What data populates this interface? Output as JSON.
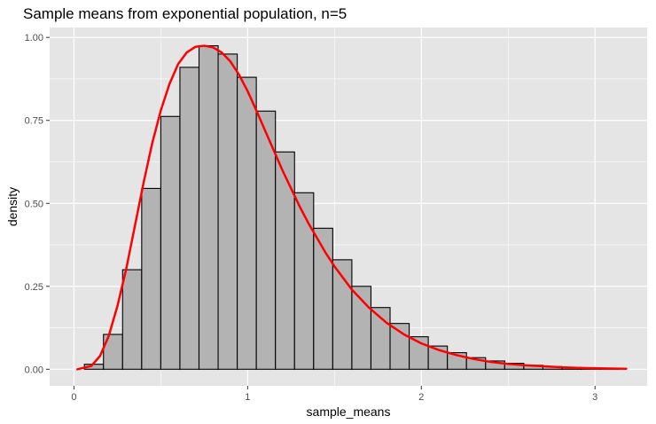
{
  "chart_data": {
    "type": "bar",
    "title": "Sample means from exponential population, n=5",
    "xlabel": "sample_means",
    "ylabel": "density",
    "xlim": [
      -0.14,
      3.3
    ],
    "ylim": [
      -0.05,
      1.03
    ],
    "x_ticks": [
      0,
      1,
      2,
      3
    ],
    "x_tick_labels": [
      "0",
      "1",
      "2",
      "3"
    ],
    "y_ticks": [
      0,
      0.25,
      0.5,
      0.75,
      1.0
    ],
    "y_tick_labels": [
      "0.00",
      "0.25",
      "0.50",
      "0.75",
      "1.00"
    ],
    "grid": true,
    "histogram": {
      "bin_width": 0.11,
      "bin_start": 0.06,
      "densities": [
        0.015,
        0.105,
        0.3,
        0.545,
        0.762,
        0.91,
        0.975,
        0.95,
        0.88,
        0.778,
        0.655,
        0.532,
        0.425,
        0.33,
        0.25,
        0.186,
        0.138,
        0.098,
        0.07,
        0.05,
        0.035,
        0.025,
        0.018,
        0.012,
        0.008,
        0.006,
        0.004,
        0.003
      ]
    },
    "density_curve": {
      "x": [
        0.02,
        0.1,
        0.15,
        0.2,
        0.25,
        0.3,
        0.35,
        0.4,
        0.45,
        0.5,
        0.55,
        0.6,
        0.65,
        0.7,
        0.75,
        0.8,
        0.85,
        0.9,
        0.95,
        1.0,
        1.05,
        1.1,
        1.15,
        1.2,
        1.25,
        1.3,
        1.35,
        1.4,
        1.45,
        1.5,
        1.6,
        1.7,
        1.8,
        1.9,
        2.0,
        2.1,
        2.2,
        2.3,
        2.4,
        2.5,
        2.6,
        2.7,
        2.8,
        2.9,
        3.0,
        3.1,
        3.18
      ],
      "y": [
        0.0,
        0.01,
        0.04,
        0.1,
        0.19,
        0.3,
        0.43,
        0.56,
        0.68,
        0.78,
        0.86,
        0.92,
        0.955,
        0.972,
        0.975,
        0.97,
        0.955,
        0.928,
        0.888,
        0.838,
        0.78,
        0.72,
        0.66,
        0.6,
        0.545,
        0.49,
        0.44,
        0.395,
        0.35,
        0.31,
        0.24,
        0.185,
        0.14,
        0.105,
        0.078,
        0.058,
        0.043,
        0.031,
        0.022,
        0.016,
        0.012,
        0.009,
        0.006,
        0.004,
        0.003,
        0.002,
        0.0015
      ],
      "color": "#ff0000"
    },
    "colors": {
      "panel_background": "#e5e5e5",
      "grid": "#ffffff",
      "bar_fill": "#b3b3b3",
      "bar_outline": "#000000",
      "curve": "#ff0000"
    }
  }
}
